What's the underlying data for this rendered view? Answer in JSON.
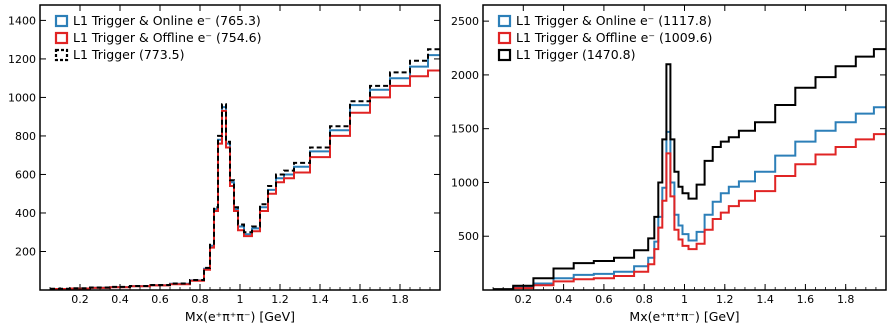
{
  "chart_data": [
    {
      "type": "line",
      "step": true,
      "xlabel": "Mx(e⁺π⁺π⁻) [GeV]",
      "ylabel": "",
      "xlim": [
        0,
        2
      ],
      "ylim": [
        0,
        1480
      ],
      "xticks": [
        "0.2",
        "0.4",
        "0.6",
        "0.8",
        "1",
        "1.2",
        "1.4",
        "1.6",
        "1.8"
      ],
      "yticks": [
        "200",
        "400",
        "600",
        "800",
        "1000",
        "1200",
        "1400"
      ],
      "legend_position": "top-left",
      "grid": false,
      "x": [
        0.1,
        0.2,
        0.3,
        0.4,
        0.5,
        0.6,
        0.7,
        0.8,
        0.84,
        0.86,
        0.88,
        0.9,
        0.92,
        0.94,
        0.96,
        0.98,
        1.0,
        1.04,
        1.08,
        1.12,
        1.16,
        1.2,
        1.24,
        1.3,
        1.4,
        1.5,
        1.6,
        1.7,
        1.8,
        1.9,
        1.98
      ],
      "series": [
        {
          "name": "L1 Trigger & Online e⁻",
          "legend_value": "(765.3)",
          "color": "#2c7fb8",
          "dash": false,
          "values": [
            5,
            8,
            12,
            15,
            20,
            25,
            32,
            50,
            110,
            230,
            420,
            780,
            950,
            760,
            560,
            420,
            330,
            290,
            320,
            430,
            520,
            580,
            600,
            640,
            720,
            830,
            960,
            1040,
            1100,
            1160,
            1220
          ]
        },
        {
          "name": "L1 Trigger & Offline e⁻",
          "legend_value": "(754.6)",
          "color": "#e02424",
          "dash": false,
          "values": [
            5,
            8,
            11,
            14,
            19,
            24,
            30,
            48,
            105,
            220,
            410,
            760,
            930,
            740,
            540,
            410,
            310,
            280,
            305,
            410,
            500,
            560,
            580,
            610,
            690,
            800,
            920,
            1000,
            1060,
            1110,
            1140
          ]
        },
        {
          "name": "L1 Trigger",
          "legend_value": "(773.5)",
          "color": "#000000",
          "dash": true,
          "values": [
            6,
            9,
            13,
            16,
            21,
            26,
            34,
            52,
            115,
            240,
            430,
            800,
            965,
            770,
            570,
            430,
            340,
            300,
            330,
            445,
            540,
            600,
            620,
            660,
            740,
            850,
            980,
            1060,
            1130,
            1190,
            1250
          ]
        }
      ]
    },
    {
      "type": "line",
      "step": true,
      "xlabel": "Mx(e⁺π⁺π⁻) [GeV]",
      "ylabel": "",
      "xlim": [
        0,
        2
      ],
      "ylim": [
        0,
        2650
      ],
      "xticks": [
        "0.2",
        "0.4",
        "0.6",
        "0.8",
        "1",
        "1.2",
        "1.4",
        "1.6",
        "1.8"
      ],
      "yticks": [
        "500",
        "1000",
        "1500",
        "2000",
        "2500"
      ],
      "legend_position": "top-left",
      "grid": false,
      "x": [
        0.1,
        0.2,
        0.3,
        0.4,
        0.5,
        0.6,
        0.7,
        0.8,
        0.84,
        0.86,
        0.88,
        0.9,
        0.92,
        0.94,
        0.96,
        0.98,
        1.0,
        1.04,
        1.08,
        1.12,
        1.16,
        1.2,
        1.24,
        1.3,
        1.4,
        1.5,
        1.6,
        1.7,
        1.8,
        1.9,
        1.98
      ],
      "series": [
        {
          "name": "L1 Trigger & Online e⁻",
          "legend_value": "(1117.8)",
          "color": "#2c7fb8",
          "dash": false,
          "values": [
            5,
            25,
            60,
            110,
            140,
            150,
            170,
            220,
            300,
            450,
            680,
            950,
            1470,
            1000,
            700,
            600,
            520,
            460,
            540,
            700,
            820,
            900,
            960,
            1010,
            1100,
            1250,
            1380,
            1480,
            1560,
            1640,
            1700
          ]
        },
        {
          "name": "L1 Trigger & Offline e⁻",
          "legend_value": "(1009.6)",
          "color": "#e02424",
          "dash": false,
          "values": [
            4,
            18,
            45,
            80,
            100,
            110,
            130,
            170,
            240,
            380,
            580,
            830,
            1270,
            870,
            560,
            470,
            410,
            380,
            430,
            560,
            660,
            720,
            780,
            830,
            920,
            1060,
            1170,
            1260,
            1330,
            1400,
            1450
          ]
        },
        {
          "name": "L1 Trigger",
          "legend_value": "(1470.8)",
          "color": "#000000",
          "dash": false,
          "values": [
            8,
            40,
            110,
            200,
            250,
            270,
            300,
            370,
            480,
            680,
            1000,
            1400,
            2100,
            1400,
            1100,
            960,
            900,
            850,
            980,
            1200,
            1330,
            1380,
            1420,
            1480,
            1560,
            1720,
            1880,
            1980,
            2080,
            2170,
            2240
          ]
        }
      ]
    }
  ]
}
